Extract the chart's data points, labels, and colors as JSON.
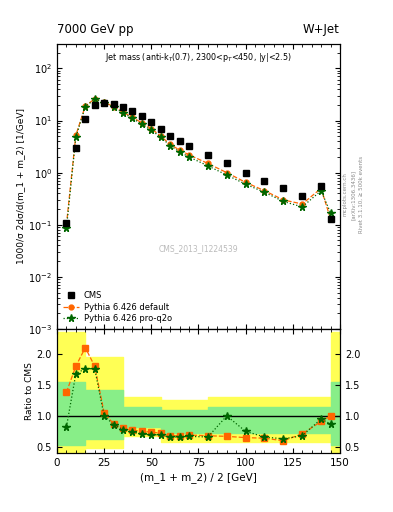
{
  "title_left": "7000 GeV pp",
  "title_right": "W+Jet",
  "annotation": "Jet mass (anti-k$_T$(0.7), 2300<p$_T$<450, |y|<2.5)",
  "cms_label": "CMS_2013_I1224539",
  "xlabel": "(m_1 + m_2) / 2 [GeV]",
  "ylabel_main": "1000/σ 2dσ/d(m_1 + m_2) [1/GeV]",
  "ylabel_ratio": "Ratio to CMS",
  "xlim": [
    0,
    150
  ],
  "ylim_main_lo": 0.001,
  "ylim_main_hi": 300,
  "ylim_ratio": [
    0.4,
    2.4
  ],
  "ratio_yticks": [
    0.5,
    1.0,
    1.5,
    2.0
  ],
  "x_cms": [
    5,
    10,
    15,
    20,
    25,
    30,
    35,
    40,
    45,
    50,
    55,
    60,
    65,
    70,
    80,
    90,
    100,
    110,
    120,
    130,
    140,
    145
  ],
  "y_cms": [
    0.11,
    3.0,
    10.5,
    20.0,
    22.0,
    21.0,
    18.0,
    15.0,
    12.0,
    9.5,
    7.0,
    5.0,
    4.0,
    3.2,
    2.2,
    1.5,
    1.0,
    0.7,
    0.5,
    0.35,
    0.55,
    0.13
  ],
  "x_pythia_def": [
    5,
    10,
    15,
    20,
    25,
    30,
    35,
    40,
    45,
    50,
    55,
    60,
    65,
    70,
    80,
    90,
    100,
    110,
    120,
    130,
    140,
    145
  ],
  "y_pythia_def": [
    0.1,
    5.2,
    19.0,
    26.0,
    22.5,
    18.5,
    14.5,
    11.5,
    9.0,
    7.0,
    5.0,
    3.5,
    2.7,
    2.2,
    1.5,
    1.0,
    0.65,
    0.45,
    0.3,
    0.25,
    0.5,
    0.13
  ],
  "x_pythia_pro": [
    5,
    10,
    15,
    20,
    25,
    30,
    35,
    40,
    45,
    50,
    55,
    60,
    65,
    70,
    80,
    90,
    100,
    110,
    120,
    130,
    140,
    145
  ],
  "y_pythia_pro": [
    0.085,
    4.8,
    18.5,
    25.5,
    22.0,
    18.0,
    14.0,
    11.0,
    8.5,
    6.5,
    4.8,
    3.3,
    2.5,
    2.0,
    1.35,
    0.9,
    0.6,
    0.42,
    0.28,
    0.22,
    0.45,
    0.17
  ],
  "ratio_x": [
    5,
    10,
    15,
    20,
    25,
    30,
    35,
    40,
    45,
    50,
    55,
    60,
    65,
    70,
    80,
    90,
    100,
    110,
    120,
    130,
    140,
    145
  ],
  "ratio_def": [
    1.38,
    1.8,
    2.1,
    1.8,
    1.05,
    0.87,
    0.8,
    0.77,
    0.75,
    0.74,
    0.72,
    0.68,
    0.68,
    0.69,
    0.68,
    0.67,
    0.65,
    0.64,
    0.6,
    0.71,
    0.91,
    1.0
  ],
  "ratio_pro": [
    0.82,
    1.68,
    1.76,
    1.76,
    1.0,
    0.86,
    0.78,
    0.74,
    0.71,
    0.7,
    0.69,
    0.66,
    0.66,
    0.67,
    0.66,
    1.0,
    0.75,
    0.66,
    0.63,
    0.68,
    0.95,
    0.87
  ],
  "color_cms": "#000000",
  "color_def": "#FF6600",
  "color_pro": "#006600",
  "band_edges": [
    0,
    5,
    15,
    35,
    55,
    80,
    130,
    145,
    150
  ],
  "yellow_hi": [
    2.35,
    2.35,
    1.95,
    1.3,
    1.25,
    1.3,
    1.3,
    2.35,
    2.35
  ],
  "yellow_lo": [
    0.4,
    0.4,
    0.48,
    0.68,
    0.58,
    0.58,
    0.58,
    0.4,
    0.4
  ],
  "green_hi": [
    1.55,
    1.55,
    1.42,
    1.15,
    1.1,
    1.15,
    1.15,
    1.55,
    1.55
  ],
  "green_lo": [
    0.53,
    0.53,
    0.63,
    0.82,
    0.72,
    0.72,
    0.72,
    0.53,
    0.53
  ]
}
